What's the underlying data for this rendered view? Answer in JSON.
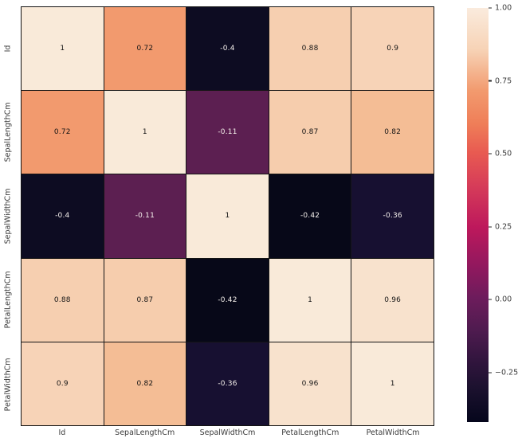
{
  "figure": {
    "background": "#ffffff",
    "gridline_color": "#141414",
    "axis_label_color": "#3b3b3b"
  },
  "chart_data": {
    "type": "heatmap",
    "title": "",
    "xlabel": "",
    "ylabel": "",
    "colormap": "rocket",
    "vmin": -0.42,
    "vmax": 1.0,
    "columns": [
      "Id",
      "SepalLengthCm",
      "SepalWidthCm",
      "PetalLengthCm",
      "PetalWidthCm"
    ],
    "rows": [
      "Id",
      "SepalLengthCm",
      "SepalWidthCm",
      "PetalLengthCm",
      "PetalWidthCm"
    ],
    "matrix": [
      [
        1,
        0.72,
        -0.4,
        0.88,
        0.9
      ],
      [
        0.72,
        1,
        -0.11,
        0.87,
        0.82
      ],
      [
        -0.4,
        -0.11,
        1,
        -0.42,
        -0.36
      ],
      [
        0.88,
        0.87,
        -0.42,
        1,
        0.96
      ],
      [
        0.9,
        0.82,
        -0.36,
        0.96,
        1
      ]
    ],
    "cell_labels": [
      [
        "1",
        "0.72",
        "-0.4",
        "0.88",
        "0.9"
      ],
      [
        "0.72",
        "1",
        "-0.11",
        "0.87",
        "0.82"
      ],
      [
        "-0.4",
        "-0.11",
        "1",
        "-0.42",
        "-0.36"
      ],
      [
        "0.88",
        "0.87",
        "-0.42",
        "1",
        "0.96"
      ],
      [
        "0.9",
        "0.82",
        "-0.36",
        "0.96",
        "1"
      ]
    ],
    "cell_colors": [
      [
        "#f9ead9",
        "#f29a6e",
        "#0d0c22",
        "#f6cfb0",
        "#f7d3b7"
      ],
      [
        "#f29a6e",
        "#f9ead9",
        "#5c1f51",
        "#f6cdad",
        "#f4bd95"
      ],
      [
        "#0d0c22",
        "#5c1f51",
        "#f9ead9",
        "#070818",
        "#171031"
      ],
      [
        "#f6cfb0",
        "#f6cdad",
        "#070818",
        "#f9ead9",
        "#f8e2cd"
      ],
      [
        "#f7d3b7",
        "#f4bd95",
        "#171031",
        "#f8e2cd",
        "#f9ead9"
      ]
    ],
    "annotation_text_dark": "#141414",
    "annotation_text_light": "#f5f0ec",
    "colorbar": {
      "ticks": [
        {
          "value": 1.0,
          "label": "1.00"
        },
        {
          "value": 0.75,
          "label": "0.75"
        },
        {
          "value": 0.5,
          "label": "0.50"
        },
        {
          "value": 0.25,
          "label": "0.25"
        },
        {
          "value": 0.0,
          "label": "0.00"
        },
        {
          "value": -0.25,
          "label": "−0.25"
        }
      ],
      "gradient_stops": [
        {
          "color": "#faebdd",
          "pos": 0
        },
        {
          "color": "#f7d3b6",
          "pos": 10
        },
        {
          "color": "#f29a6e",
          "pos": 20
        },
        {
          "color": "#ef7e58",
          "pos": 28
        },
        {
          "color": "#e85a51",
          "pos": 35
        },
        {
          "color": "#d63c59",
          "pos": 43
        },
        {
          "color": "#bd185c",
          "pos": 53
        },
        {
          "color": "#93185e",
          "pos": 62
        },
        {
          "color": "#6d1c5c",
          "pos": 70
        },
        {
          "color": "#4e1b4f",
          "pos": 78
        },
        {
          "color": "#32153e",
          "pos": 85
        },
        {
          "color": "#1b112e",
          "pos": 92
        },
        {
          "color": "#05061c",
          "pos": 100
        }
      ]
    }
  }
}
